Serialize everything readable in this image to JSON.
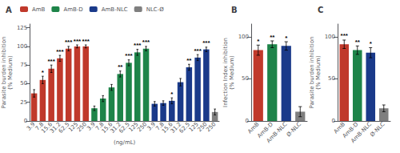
{
  "chart_data": [
    {
      "type": "bar",
      "title": "A",
      "ylabel": "Parasite burden inhibition\n(% Medium)",
      "xlabel": "(ng/mL)",
      "categories": [
        "3.9",
        "7.8",
        "15.6",
        "31.2",
        "62.5",
        "125",
        "250",
        "3.9",
        "7.8",
        "15.6",
        "31.2",
        "62.5",
        "125",
        "250",
        "3.9",
        "7.8",
        "15.6",
        "31.2",
        "62.5",
        "125",
        "250",
        "250"
      ],
      "series": [
        {
          "name": "AmB",
          "color": "#c0392b",
          "values": [
            37,
            55,
            70,
            84,
            97,
            100,
            100,
            null,
            null,
            null,
            null,
            null,
            null,
            null,
            null,
            null,
            null,
            null,
            null,
            null,
            null,
            null
          ],
          "errors": [
            5,
            5,
            5,
            4,
            3,
            2,
            2,
            null,
            null,
            null,
            null,
            null,
            null,
            null,
            null,
            null,
            null,
            null,
            null,
            null,
            null,
            null
          ],
          "stars": [
            null,
            "*",
            "***",
            "***",
            "***",
            "***",
            "***",
            null,
            null,
            null,
            null,
            null,
            null,
            null,
            null,
            null,
            null,
            null,
            null,
            null,
            null,
            null
          ]
        },
        {
          "name": "AmB-D",
          "color": "#1e8449",
          "values": [
            null,
            null,
            null,
            null,
            null,
            null,
            null,
            17,
            30,
            45,
            63,
            78,
            92,
            97,
            null,
            null,
            null,
            null,
            null,
            null,
            null,
            null
          ],
          "errors": [
            null,
            null,
            null,
            null,
            null,
            null,
            null,
            3,
            4,
            4,
            4,
            4,
            4,
            3,
            null,
            null,
            null,
            null,
            null,
            null,
            null,
            null
          ],
          "stars": [
            null,
            null,
            null,
            null,
            null,
            null,
            null,
            null,
            null,
            null,
            "**",
            "***",
            "***",
            "***",
            null,
            null,
            null,
            null,
            null,
            null,
            null,
            null
          ]
        },
        {
          "name": "AmB-NLC",
          "color": "#1a3a8a",
          "values": [
            null,
            null,
            null,
            null,
            null,
            null,
            null,
            null,
            null,
            null,
            null,
            null,
            null,
            null,
            23,
            24,
            27,
            52,
            72,
            85,
            96,
            null
          ],
          "errors": [
            null,
            null,
            null,
            null,
            null,
            null,
            null,
            null,
            null,
            null,
            null,
            null,
            null,
            null,
            3,
            3,
            4,
            5,
            4,
            4,
            3,
            null
          ],
          "stars": [
            null,
            null,
            null,
            null,
            null,
            null,
            null,
            null,
            null,
            null,
            null,
            null,
            null,
            null,
            null,
            null,
            "*",
            null,
            "**",
            "***",
            "***",
            null
          ]
        },
        {
          "name": "NLC-Ø",
          "color": "#7f7f7f",
          "values": [
            null,
            null,
            null,
            null,
            null,
            null,
            null,
            null,
            null,
            null,
            null,
            null,
            null,
            null,
            null,
            null,
            null,
            null,
            null,
            null,
            null,
            12
          ],
          "errors": [
            null,
            null,
            null,
            null,
            null,
            null,
            null,
            null,
            null,
            null,
            null,
            null,
            null,
            null,
            null,
            null,
            null,
            null,
            null,
            null,
            null,
            4
          ],
          "stars": [
            null,
            null,
            null,
            null,
            null,
            null,
            null,
            null,
            null,
            null,
            null,
            null,
            null,
            null,
            null,
            null,
            null,
            null,
            null,
            null,
            null,
            null
          ]
        }
      ],
      "ylim": [
        0,
        130
      ],
      "yticks": [
        0,
        25,
        50,
        75,
        100,
        125
      ],
      "grid": false,
      "legend": "top"
    },
    {
      "type": "bar",
      "title": "B",
      "ylabel": "Infection Index inhibition\n(% Medium)",
      "categories": [
        "AmB",
        "AmB-D",
        "AmB-NLC",
        "Ø-NLC"
      ],
      "values": [
        84,
        91,
        89,
        11
      ],
      "colors": [
        "#c0392b",
        "#1e8449",
        "#1a3a8a",
        "#7f7f7f"
      ],
      "errors": [
        6,
        4,
        5,
        6
      ],
      "stars": [
        "*",
        "**",
        "*",
        null
      ],
      "ylim": [
        0,
        115
      ],
      "yticks": [
        0,
        50,
        100
      ],
      "grid": false
    },
    {
      "type": "bar",
      "title": "C",
      "ylabel": "Parasite burden inhibition\n(% Medium)",
      "categories": [
        "AmB",
        "AmB-D",
        "AmB-NLC",
        "Ø-NLC"
      ],
      "values": [
        91,
        84,
        81,
        15
      ],
      "colors": [
        "#c0392b",
        "#1e8449",
        "#1a3a8a",
        "#7f7f7f"
      ],
      "errors": [
        5,
        5,
        6,
        4
      ],
      "stars": [
        "***",
        "**",
        "*",
        null
      ],
      "ylim": [
        0,
        115
      ],
      "yticks": [
        0,
        50,
        100
      ],
      "grid": false
    }
  ]
}
